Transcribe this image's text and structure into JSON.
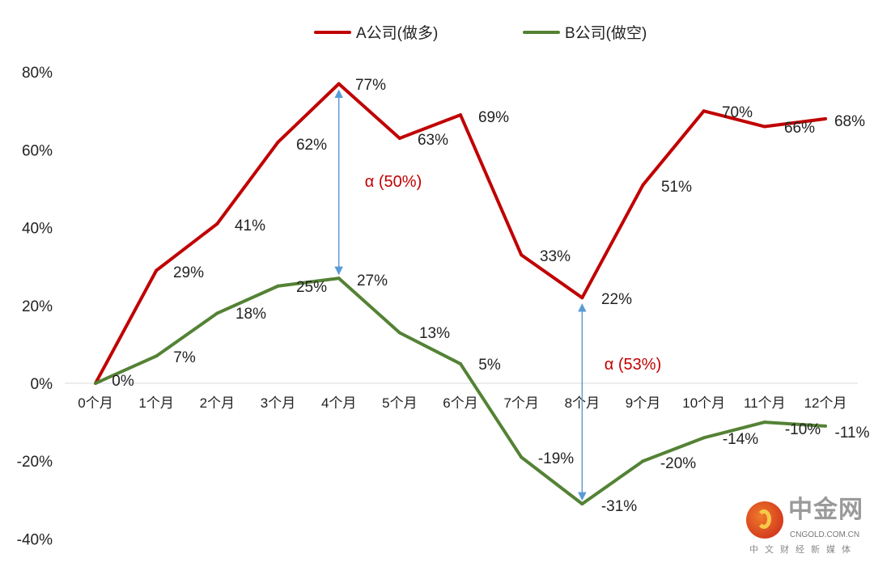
{
  "chart_data": {
    "type": "line",
    "title": "",
    "xlabel": "",
    "ylabel": "",
    "categories": [
      "0个月",
      "1个月",
      "2个月",
      "3个月",
      "4个月",
      "5个月",
      "6个月",
      "7个月",
      "8个月",
      "9个月",
      "10个月",
      "11个月",
      "12个月"
    ],
    "y_ticks": [
      "80%",
      "60%",
      "40%",
      "20%",
      "0%",
      "-20%",
      "-40%"
    ],
    "ylim": [
      -40,
      80
    ],
    "grid": false,
    "legend_placement": "top",
    "series": [
      {
        "name": "A公司(做多)",
        "color": "#c00000",
        "values": [
          0,
          29,
          41,
          62,
          77,
          63,
          69,
          33,
          22,
          51,
          70,
          66,
          68
        ],
        "labels": [
          "0%",
          "29%",
          "41%",
          "62%",
          "77%",
          "63%",
          "69%",
          "33%",
          "22%",
          "51%",
          "70%",
          "66%",
          "68%"
        ]
      },
      {
        "name": "B公司(做空)",
        "color": "#548235",
        "values": [
          0,
          7,
          18,
          25,
          27,
          13,
          5,
          -19,
          -31,
          -20,
          -14,
          -10,
          -11
        ],
        "labels": [
          "",
          "7%",
          "18%",
          "25%",
          "27%",
          "13%",
          "5%",
          "-19%",
          "-31%",
          "-20%",
          "-14%",
          "-10%",
          "-11%"
        ]
      }
    ],
    "annotations": [
      {
        "text": "α (50%)",
        "month_index": 4,
        "from": 77,
        "to": 27,
        "color": "#c00000",
        "arrow_color": "#5b9bd5"
      },
      {
        "text": "α (53%)",
        "month_index": 8,
        "from": 22,
        "to": -31,
        "color": "#c00000",
        "arrow_color": "#5b9bd5"
      }
    ]
  },
  "watermark": {
    "name": "中金网",
    "url": "CNGOLD.COM.CN",
    "tagline": "中文财经新媒体"
  }
}
